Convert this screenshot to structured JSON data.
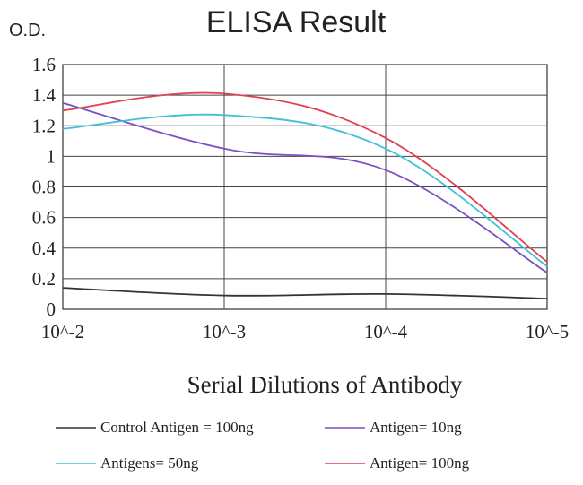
{
  "chart_data": {
    "type": "line",
    "title": "ELISA Result",
    "ylabel": "O.D.",
    "xlabel": "Serial Dilutions  of Antibody",
    "x_ticks": [
      "10^-2",
      "10^-3",
      "10^-4",
      "10^-5"
    ],
    "y_ticks": [
      "0",
      "0.2",
      "0.4",
      "0.6",
      "0.8",
      "1",
      "1.2",
      "1.4",
      "1.6"
    ],
    "ylim": [
      0,
      1.6
    ],
    "x": [
      0.01,
      0.001,
      0.0001,
      1e-05
    ],
    "x_scale": "log",
    "grid": true,
    "legend_position": "bottom",
    "series": [
      {
        "name": "Control Antigen = 100ng",
        "color": "#333333",
        "values": [
          0.14,
          0.09,
          0.1,
          0.07
        ]
      },
      {
        "name": "Antigen= 10ng",
        "color": "#7b4fc4",
        "values": [
          1.35,
          1.05,
          0.91,
          0.24
        ]
      },
      {
        "name": "Antigens= 50ng",
        "color": "#3fc0d6",
        "values": [
          1.18,
          1.27,
          1.05,
          0.28
        ]
      },
      {
        "name": "Antigen= 100ng",
        "color": "#e04050",
        "values": [
          1.3,
          1.41,
          1.12,
          0.31
        ]
      }
    ]
  }
}
